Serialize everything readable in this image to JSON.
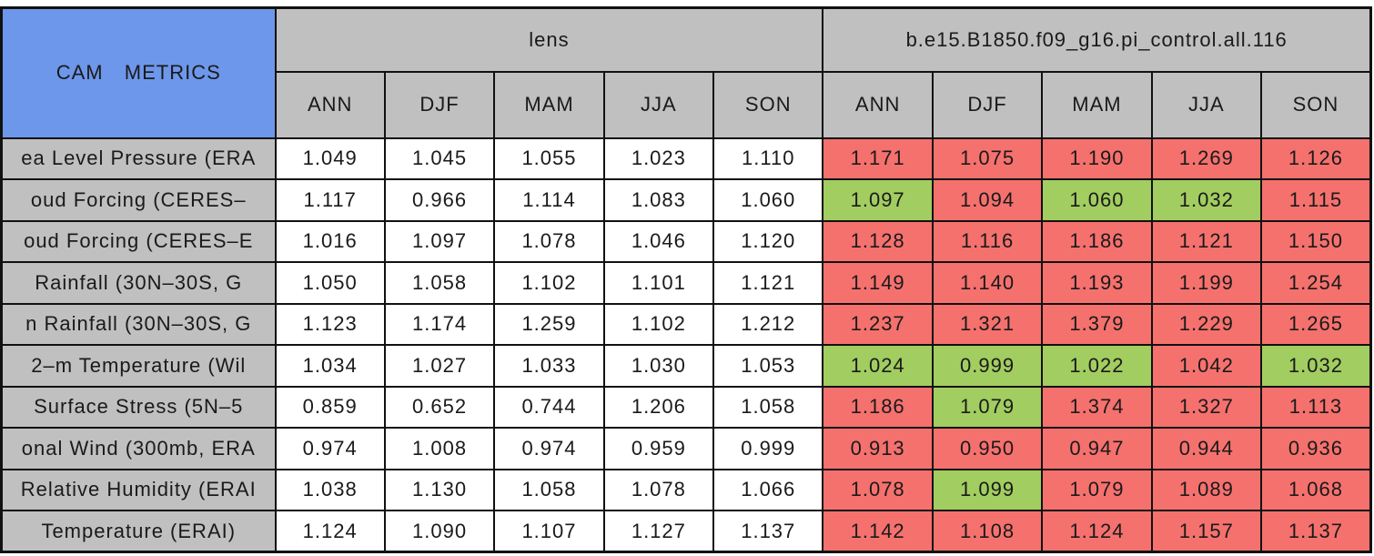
{
  "colors": {
    "blue": "#6d97ea",
    "gray": "#c0c0c0",
    "red": "#f5716e",
    "green": "#a2cd60",
    "border": "#111111"
  },
  "table": {
    "title": "CAM METRICS",
    "groups": [
      "lens",
      "b.e15.B1850.f09_g16.pi_control.all.116"
    ],
    "seasons": [
      "ANN",
      "DJF",
      "MAM",
      "JJA",
      "SON"
    ]
  },
  "chart_data": {
    "type": "table",
    "title": "CAM METRICS",
    "column_groups": [
      "lens",
      "b.e15.B1850.f09_g16.pi_control.all.116"
    ],
    "season_columns": [
      "ANN",
      "DJF",
      "MAM",
      "JJA",
      "SON"
    ],
    "cell_highlight_colors": {
      "red": "#f5716e",
      "green": "#a2cd60"
    },
    "rows": [
      {
        "label": "ea Level Pressure (ERA",
        "lens": [
          "1.049",
          "1.045",
          "1.055",
          "1.023",
          "1.110"
        ],
        "control": [
          "1.171",
          "1.075",
          "1.190",
          "1.269",
          "1.126"
        ],
        "control_colors": [
          "red",
          "red",
          "red",
          "red",
          "red"
        ]
      },
      {
        "label": "oud Forcing (CERES–",
        "lens": [
          "1.117",
          "0.966",
          "1.114",
          "1.083",
          "1.060"
        ],
        "control": [
          "1.097",
          "1.094",
          "1.060",
          "1.032",
          "1.115"
        ],
        "control_colors": [
          "green",
          "red",
          "green",
          "green",
          "red"
        ]
      },
      {
        "label": "oud Forcing (CERES–E",
        "lens": [
          "1.016",
          "1.097",
          "1.078",
          "1.046",
          "1.120"
        ],
        "control": [
          "1.128",
          "1.116",
          "1.186",
          "1.121",
          "1.150"
        ],
        "control_colors": [
          "red",
          "red",
          "red",
          "red",
          "red"
        ]
      },
      {
        "label": "Rainfall (30N–30S, G",
        "lens": [
          "1.050",
          "1.058",
          "1.102",
          "1.101",
          "1.121"
        ],
        "control": [
          "1.149",
          "1.140",
          "1.193",
          "1.199",
          "1.254"
        ],
        "control_colors": [
          "red",
          "red",
          "red",
          "red",
          "red"
        ]
      },
      {
        "label": "n Rainfall (30N–30S, G",
        "lens": [
          "1.123",
          "1.174",
          "1.259",
          "1.102",
          "1.212"
        ],
        "control": [
          "1.237",
          "1.321",
          "1.379",
          "1.229",
          "1.265"
        ],
        "control_colors": [
          "red",
          "red",
          "red",
          "red",
          "red"
        ]
      },
      {
        "label": "2–m Temperature (Wil",
        "lens": [
          "1.034",
          "1.027",
          "1.033",
          "1.030",
          "1.053"
        ],
        "control": [
          "1.024",
          "0.999",
          "1.022",
          "1.042",
          "1.032"
        ],
        "control_colors": [
          "green",
          "green",
          "green",
          "red",
          "green"
        ]
      },
      {
        "label": "Surface Stress (5N–5",
        "lens": [
          "0.859",
          "0.652",
          "0.744",
          "1.206",
          "1.058"
        ],
        "control": [
          "1.186",
          "1.079",
          "1.374",
          "1.327",
          "1.113"
        ],
        "control_colors": [
          "red",
          "green",
          "red",
          "red",
          "red"
        ]
      },
      {
        "label": "onal Wind (300mb, ERA",
        "lens": [
          "0.974",
          "1.008",
          "0.974",
          "0.959",
          "0.999"
        ],
        "control": [
          "0.913",
          "0.950",
          "0.947",
          "0.944",
          "0.936"
        ],
        "control_colors": [
          "red",
          "red",
          "red",
          "red",
          "red"
        ]
      },
      {
        "label": "Relative Humidity (ERAI",
        "lens": [
          "1.038",
          "1.130",
          "1.058",
          "1.078",
          "1.066"
        ],
        "control": [
          "1.078",
          "1.099",
          "1.079",
          "1.089",
          "1.068"
        ],
        "control_colors": [
          "red",
          "green",
          "red",
          "red",
          "red"
        ]
      },
      {
        "label": "Temperature (ERAI)",
        "lens": [
          "1.124",
          "1.090",
          "1.107",
          "1.127",
          "1.137"
        ],
        "control": [
          "1.142",
          "1.108",
          "1.124",
          "1.157",
          "1.137"
        ],
        "control_colors": [
          "red",
          "red",
          "red",
          "red",
          "red"
        ]
      }
    ]
  }
}
